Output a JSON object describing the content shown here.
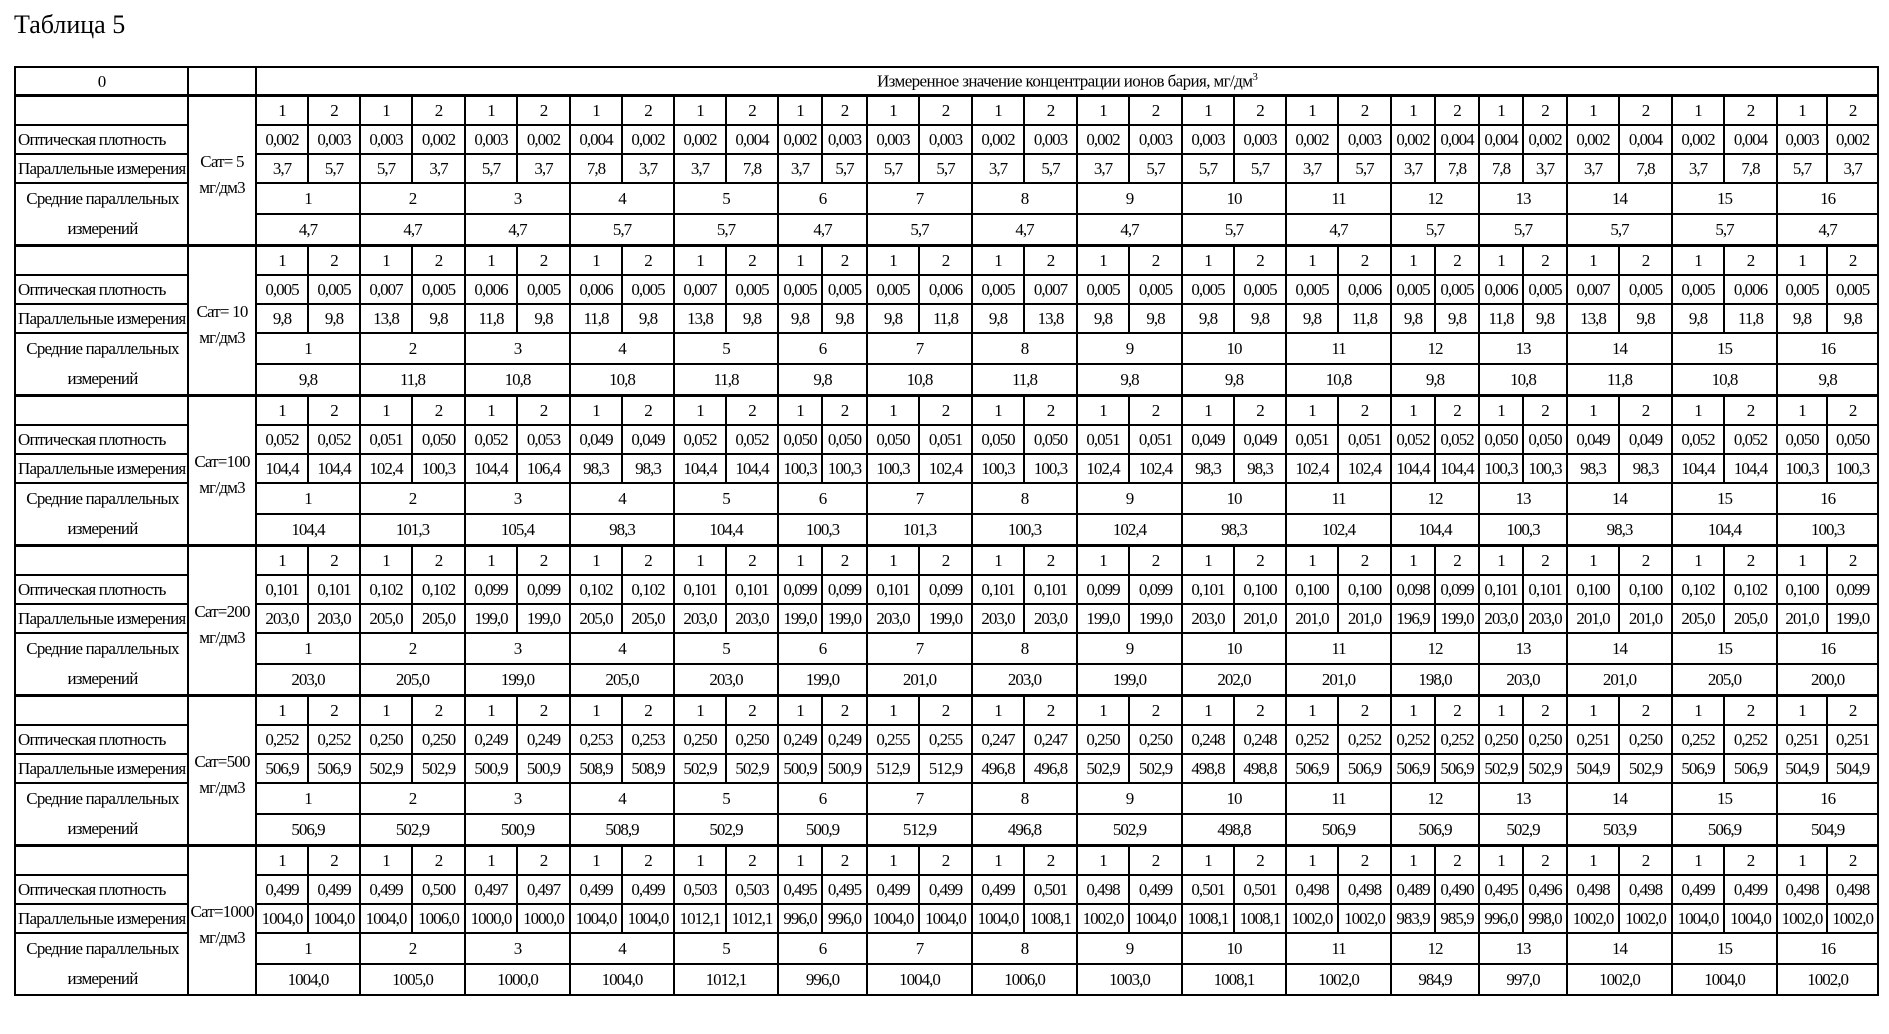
{
  "title": "Таблица 5",
  "header": {
    "col0": "0",
    "measured": "Измеренное значение концентрации ионов бария, мг/дм",
    "measured_sup": "3"
  },
  "row_labels": {
    "optical": "Оптическая плотность",
    "parallel": "Параллельные измерения",
    "means": "Средние параллельных измерений"
  },
  "parallel_numbers": [
    "1",
    "2"
  ],
  "set_numbers": [
    "1",
    "2",
    "3",
    "4",
    "5",
    "6",
    "7",
    "8",
    "9",
    "10",
    "11",
    "12",
    "13",
    "14",
    "15",
    "16"
  ],
  "blocks": [
    {
      "cat": "Сат= 5",
      "unit": "мг/дм3",
      "optical": [
        "0,002",
        "0,003",
        "0,003",
        "0,002",
        "0,003",
        "0,002",
        "0,004",
        "0,002",
        "0,002",
        "0,004",
        "0,002",
        "0,003",
        "0,003",
        "0,003",
        "0,002",
        "0,003",
        "0,002",
        "0,003",
        "0,003",
        "0,003",
        "0,002",
        "0,003",
        "0,002",
        "0,004",
        "0,004",
        "0,002",
        "0,002",
        "0,004",
        "0,002",
        "0,004",
        "0,003",
        "0,002"
      ],
      "parallel": [
        "3,7",
        "5,7",
        "5,7",
        "3,7",
        "5,7",
        "3,7",
        "7,8",
        "3,7",
        "3,7",
        "7,8",
        "3,7",
        "5,7",
        "5,7",
        "5,7",
        "3,7",
        "5,7",
        "3,7",
        "5,7",
        "5,7",
        "5,7",
        "3,7",
        "5,7",
        "3,7",
        "7,8",
        "7,8",
        "3,7",
        "3,7",
        "7,8",
        "3,7",
        "7,8",
        "5,7",
        "3,7"
      ],
      "means": [
        "4,7",
        "4,7",
        "4,7",
        "5,7",
        "5,7",
        "4,7",
        "5,7",
        "4,7",
        "4,7",
        "5,7",
        "4,7",
        "5,7",
        "5,7",
        "5,7",
        "5,7",
        "4,7"
      ]
    },
    {
      "cat": "Сат= 10",
      "unit": "мг/дм3",
      "optical": [
        "0,005",
        "0,005",
        "0,007",
        "0,005",
        "0,006",
        "0,005",
        "0,006",
        "0,005",
        "0,007",
        "0,005",
        "0,005",
        "0,005",
        "0,005",
        "0,006",
        "0,005",
        "0,007",
        "0,005",
        "0,005",
        "0,005",
        "0,005",
        "0,005",
        "0,006",
        "0,005",
        "0,005",
        "0,006",
        "0,005",
        "0,007",
        "0,005",
        "0,005",
        "0,006",
        "0,005",
        "0,005"
      ],
      "parallel": [
        "9,8",
        "9,8",
        "13,8",
        "9,8",
        "11,8",
        "9,8",
        "11,8",
        "9,8",
        "13,8",
        "9,8",
        "9,8",
        "9,8",
        "9,8",
        "11,8",
        "9,8",
        "13,8",
        "9,8",
        "9,8",
        "9,8",
        "9,8",
        "9,8",
        "11,8",
        "9,8",
        "9,8",
        "11,8",
        "9,8",
        "13,8",
        "9,8",
        "9,8",
        "11,8",
        "9,8",
        "9,8"
      ],
      "means": [
        "9,8",
        "11,8",
        "10,8",
        "10,8",
        "11,8",
        "9,8",
        "10,8",
        "11,8",
        "9,8",
        "9,8",
        "10,8",
        "9,8",
        "10,8",
        "11,8",
        "10,8",
        "9,8"
      ]
    },
    {
      "cat": "Сат=100",
      "unit": "мг/дм3",
      "optical": [
        "0,052",
        "0,052",
        "0,051",
        "0,050",
        "0,052",
        "0,053",
        "0,049",
        "0,049",
        "0,052",
        "0,052",
        "0,050",
        "0,050",
        "0,050",
        "0,051",
        "0,050",
        "0,050",
        "0,051",
        "0,051",
        "0,049",
        "0,049",
        "0,051",
        "0,051",
        "0,052",
        "0,052",
        "0,050",
        "0,050",
        "0,049",
        "0,049",
        "0,052",
        "0,052",
        "0,050",
        "0,050"
      ],
      "parallel": [
        "104,4",
        "104,4",
        "102,4",
        "100,3",
        "104,4",
        "106,4",
        "98,3",
        "98,3",
        "104,4",
        "104,4",
        "100,3",
        "100,3",
        "100,3",
        "102,4",
        "100,3",
        "100,3",
        "102,4",
        "102,4",
        "98,3",
        "98,3",
        "102,4",
        "102,4",
        "104,4",
        "104,4",
        "100,3",
        "100,3",
        "98,3",
        "98,3",
        "104,4",
        "104,4",
        "100,3",
        "100,3"
      ],
      "means": [
        "104,4",
        "101,3",
        "105,4",
        "98,3",
        "104,4",
        "100,3",
        "101,3",
        "100,3",
        "102,4",
        "98,3",
        "102,4",
        "104,4",
        "100,3",
        "98,3",
        "104,4",
        "100,3"
      ]
    },
    {
      "cat": "Сат=200",
      "unit": "мг/дм3",
      "optical": [
        "0,101",
        "0,101",
        "0,102",
        "0,102",
        "0,099",
        "0,099",
        "0,102",
        "0,102",
        "0,101",
        "0,101",
        "0,099",
        "0,099",
        "0,101",
        "0,099",
        "0,101",
        "0,101",
        "0,099",
        "0,099",
        "0,101",
        "0,100",
        "0,100",
        "0,100",
        "0,098",
        "0,099",
        "0,101",
        "0,101",
        "0,100",
        "0,100",
        "0,102",
        "0,102",
        "0,100",
        "0,099"
      ],
      "parallel": [
        "203,0",
        "203,0",
        "205,0",
        "205,0",
        "199,0",
        "199,0",
        "205,0",
        "205,0",
        "203,0",
        "203,0",
        "199,0",
        "199,0",
        "203,0",
        "199,0",
        "203,0",
        "203,0",
        "199,0",
        "199,0",
        "203,0",
        "201,0",
        "201,0",
        "201,0",
        "196,9",
        "199,0",
        "203,0",
        "203,0",
        "201,0",
        "201,0",
        "205,0",
        "205,0",
        "201,0",
        "199,0"
      ],
      "means": [
        "203,0",
        "205,0",
        "199,0",
        "205,0",
        "203,0",
        "199,0",
        "201,0",
        "203,0",
        "199,0",
        "202,0",
        "201,0",
        "198,0",
        "203,0",
        "201,0",
        "205,0",
        "200,0"
      ]
    },
    {
      "cat": "Сат=500",
      "unit": "мг/дм3",
      "optical": [
        "0,252",
        "0,252",
        "0,250",
        "0,250",
        "0,249",
        "0,249",
        "0,253",
        "0,253",
        "0,250",
        "0,250",
        "0,249",
        "0,249",
        "0,255",
        "0,255",
        "0,247",
        "0,247",
        "0,250",
        "0,250",
        "0,248",
        "0,248",
        "0,252",
        "0,252",
        "0,252",
        "0,252",
        "0,250",
        "0,250",
        "0,251",
        "0,250",
        "0,252",
        "0,252",
        "0,251",
        "0,251"
      ],
      "parallel": [
        "506,9",
        "506,9",
        "502,9",
        "502,9",
        "500,9",
        "500,9",
        "508,9",
        "508,9",
        "502,9",
        "502,9",
        "500,9",
        "500,9",
        "512,9",
        "512,9",
        "496,8",
        "496,8",
        "502,9",
        "502,9",
        "498,8",
        "498,8",
        "506,9",
        "506,9",
        "506,9",
        "506,9",
        "502,9",
        "502,9",
        "504,9",
        "502,9",
        "506,9",
        "506,9",
        "504,9",
        "504,9"
      ],
      "means": [
        "506,9",
        "502,9",
        "500,9",
        "508,9",
        "502,9",
        "500,9",
        "512,9",
        "496,8",
        "502,9",
        "498,8",
        "506,9",
        "506,9",
        "502,9",
        "503,9",
        "506,9",
        "504,9"
      ]
    },
    {
      "cat": "Сат=1000",
      "unit": "мг/дм3",
      "optical": [
        "0,499",
        "0,499",
        "0,499",
        "0,500",
        "0,497",
        "0,497",
        "0,499",
        "0,499",
        "0,503",
        "0,503",
        "0,495",
        "0,495",
        "0,499",
        "0,499",
        "0,499",
        "0,501",
        "0,498",
        "0,499",
        "0,501",
        "0,501",
        "0,498",
        "0,498",
        "0,489",
        "0,490",
        "0,495",
        "0,496",
        "0,498",
        "0,498",
        "0,499",
        "0,499",
        "0,498",
        "0,498"
      ],
      "parallel": [
        "1004,0",
        "1004,0",
        "1004,0",
        "1006,0",
        "1000,0",
        "1000,0",
        "1004,0",
        "1004,0",
        "1012,1",
        "1012,1",
        "996,0",
        "996,0",
        "1004,0",
        "1004,0",
        "1004,0",
        "1008,1",
        "1002,0",
        "1004,0",
        "1008,1",
        "1008,1",
        "1002,0",
        "1002,0",
        "983,9",
        "985,9",
        "996,0",
        "998,0",
        "1002,0",
        "1002,0",
        "1004,0",
        "1004,0",
        "1002,0",
        "1002,0"
      ],
      "means": [
        "1004,0",
        "1005,0",
        "1000,0",
        "1004,0",
        "1012,1",
        "996,0",
        "1004,0",
        "1006,0",
        "1003,0",
        "1008,1",
        "1002,0",
        "984,9",
        "997,0",
        "1002,0",
        "1004,0",
        "1002,0"
      ]
    }
  ]
}
